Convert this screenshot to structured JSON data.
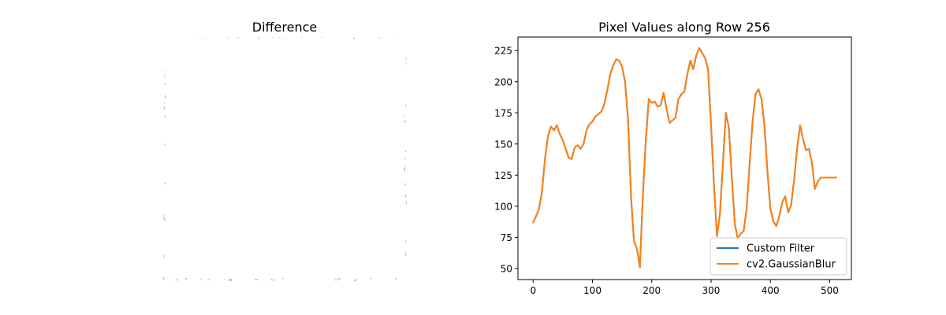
{
  "chart_data": [
    {
      "type": "image",
      "title": "Difference",
      "axes": "off",
      "description_colors": {
        "background": "#ffffff",
        "speckle": "#7f7f7f"
      }
    },
    {
      "type": "line",
      "title": "Pixel Values along Row 256",
      "xlabel": "",
      "ylabel": "",
      "xlim": [
        -25.6,
        536.6
      ],
      "ylim": [
        41.1,
        235.9
      ],
      "xticks": [
        0,
        100,
        200,
        300,
        400,
        500
      ],
      "yticks": [
        50,
        75,
        100,
        125,
        150,
        175,
        200,
        225
      ],
      "grid": false,
      "legend_position": "lower right",
      "series": [
        {
          "name": "Custom Filter",
          "color": "#1f77b4",
          "x": [
            0,
            5,
            10,
            15,
            20,
            25,
            30,
            35,
            40,
            45,
            50,
            55,
            60,
            65,
            70,
            75,
            80,
            85,
            90,
            95,
            100,
            105,
            110,
            115,
            120,
            125,
            130,
            135,
            140,
            145,
            150,
            155,
            160,
            165,
            170,
            175,
            180,
            185,
            190,
            195,
            200,
            205,
            210,
            215,
            220,
            225,
            230,
            235,
            240,
            245,
            250,
            255,
            260,
            265,
            270,
            275,
            280,
            285,
            290,
            295,
            300,
            305,
            310,
            315,
            320,
            325,
            330,
            335,
            340,
            345,
            350,
            355,
            360,
            365,
            370,
            375,
            380,
            385,
            390,
            395,
            400,
            405,
            410,
            415,
            420,
            425,
            430,
            435,
            440,
            445,
            450,
            455,
            460,
            465,
            470,
            475,
            480,
            485,
            490,
            495,
            500,
            505,
            511
          ],
          "values": [
            87,
            92,
            98,
            112,
            138,
            156,
            164,
            161,
            165,
            158,
            153,
            146,
            139,
            138,
            147,
            149,
            146,
            150,
            161,
            166,
            168,
            172,
            174,
            176,
            182,
            193,
            206,
            213,
            218,
            217,
            212,
            200,
            170,
            108,
            72,
            66,
            51,
            109,
            153,
            186,
            183,
            184,
            180,
            181,
            191,
            178,
            167,
            169,
            171,
            186,
            190,
            192,
            206,
            217,
            210,
            221,
            227,
            223,
            219,
            210,
            165,
            116,
            76,
            94,
            135,
            175,
            163,
            123,
            86,
            74,
            78,
            80,
            98,
            134,
            168,
            190,
            194,
            186,
            165,
            128,
            98,
            88,
            84,
            92,
            103,
            108,
            95,
            101,
            121,
            146,
            165,
            154,
            145,
            146,
            135,
            114,
            120,
            123,
            123,
            123,
            123,
            123,
            123
          ],
          "x_note": ""
        },
        {
          "name": "cv2.GaussianBlur",
          "color": "#ff7f0e"
        }
      ]
    }
  ]
}
